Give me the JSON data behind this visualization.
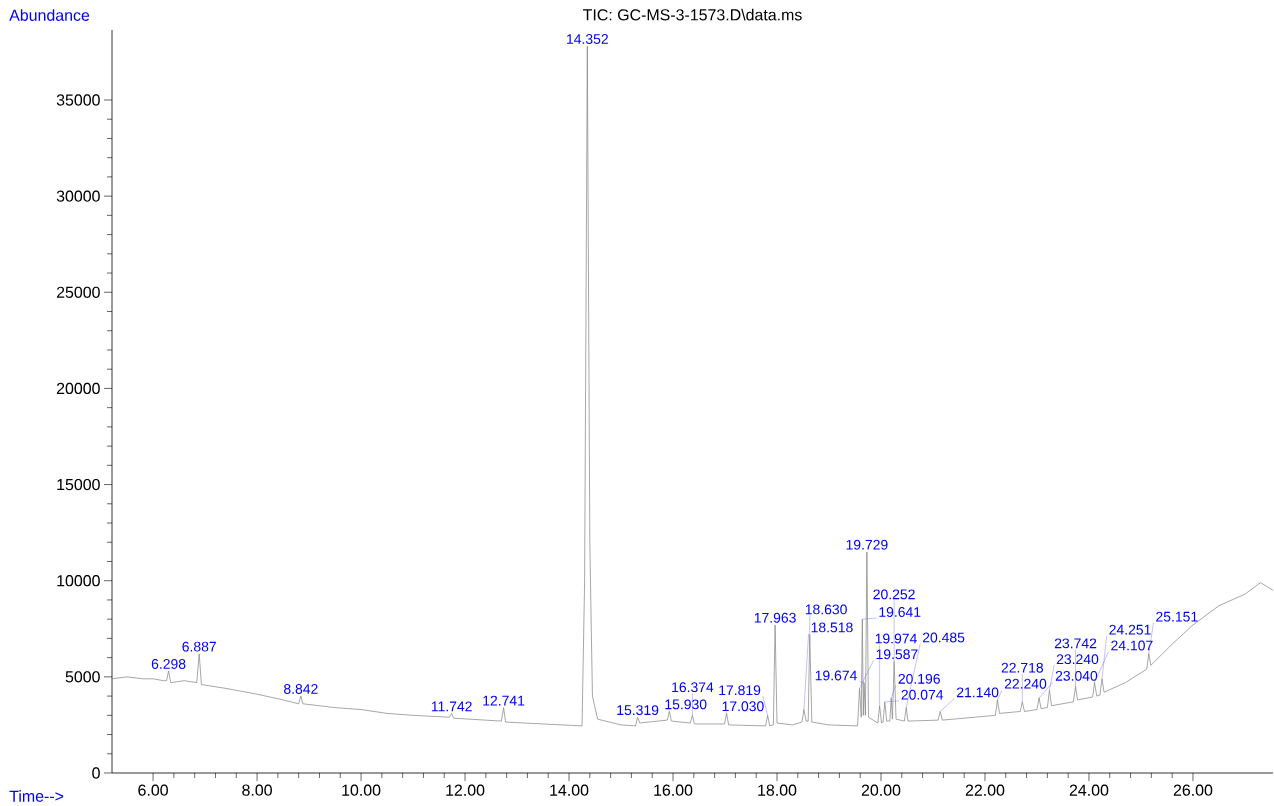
{
  "chart_data": {
    "type": "line",
    "title": "TIC: GC-MS-3-1573.D\\data.ms",
    "xlabel": "Time-->",
    "ylabel": "Abundance",
    "xlim": [
      5.21,
      27.54
    ],
    "ylim": [
      0,
      38640
    ],
    "xticks": [
      {
        "value": 6,
        "label": "6.00"
      },
      {
        "value": 8,
        "label": "8.00"
      },
      {
        "value": 10,
        "label": "10.00"
      },
      {
        "value": 12,
        "label": "12.00"
      },
      {
        "value": 14,
        "label": "14.00"
      },
      {
        "value": 16,
        "label": "16.00"
      },
      {
        "value": 18,
        "label": "18.00"
      },
      {
        "value": 20,
        "label": "20.00"
      },
      {
        "value": 22,
        "label": "22.00"
      },
      {
        "value": 24,
        "label": "24.00"
      },
      {
        "value": 26,
        "label": "26.00"
      }
    ],
    "yticks": [
      0,
      5000,
      10000,
      15000,
      20000,
      25000,
      30000,
      35000
    ],
    "series": [
      {
        "color": "#808080",
        "x": [
          5.21,
          5.5,
          5.8,
          6.0,
          6.2,
          6.26,
          6.298,
          6.34,
          6.6,
          6.84,
          6.887,
          6.93,
          7.4,
          8.0,
          8.5,
          8.8,
          8.842,
          8.88,
          9.5,
          10.0,
          10.5,
          11.0,
          11.7,
          11.742,
          11.78,
          12.7,
          12.741,
          12.78,
          13.5,
          14.25,
          14.3,
          14.352,
          14.4,
          14.45,
          14.55,
          15.0,
          15.28,
          15.319,
          15.36,
          15.89,
          15.93,
          15.97,
          16.33,
          16.374,
          16.41,
          16.99,
          17.03,
          17.07,
          17.78,
          17.819,
          17.86,
          17.93,
          17.963,
          18.0,
          18.3,
          18.48,
          18.518,
          18.56,
          18.6,
          18.63,
          18.67,
          19.0,
          19.55,
          19.587,
          19.62,
          19.641,
          19.66,
          19.674,
          19.7,
          19.729,
          19.76,
          19.94,
          19.974,
          20.01,
          20.04,
          20.074,
          20.11,
          20.17,
          20.196,
          20.22,
          20.252,
          20.29,
          20.45,
          20.485,
          20.52,
          21.1,
          21.14,
          21.18,
          21.8,
          22.2,
          22.24,
          22.28,
          22.68,
          22.718,
          22.76,
          23.0,
          23.04,
          23.08,
          23.2,
          23.24,
          23.28,
          23.7,
          23.742,
          23.78,
          24.07,
          24.107,
          24.15,
          24.21,
          24.251,
          24.29,
          24.7,
          25.11,
          25.151,
          25.19,
          25.6,
          26.0,
          26.5,
          27.0,
          27.3,
          27.54
        ],
        "values": [
          4900,
          5000,
          4900,
          4900,
          4800,
          4800,
          5300,
          4700,
          4800,
          4700,
          6200,
          4600,
          4400,
          4100,
          3800,
          3600,
          4000,
          3600,
          3400,
          3300,
          3100,
          3000,
          2900,
          3100,
          2850,
          2700,
          3400,
          2650,
          2550,
          2450,
          10000,
          37800,
          12000,
          4000,
          2800,
          2500,
          2450,
          2900,
          2600,
          2750,
          3200,
          2700,
          2600,
          3000,
          2550,
          2550,
          3100,
          2500,
          2450,
          3000,
          2450,
          2500,
          7700,
          2600,
          2500,
          2650,
          3300,
          2700,
          2700,
          7200,
          2650,
          2500,
          2450,
          4400,
          2900,
          8000,
          3000,
          4700,
          3000,
          11500,
          2900,
          2600,
          3500,
          2600,
          2650,
          3700,
          2700,
          2700,
          3900,
          2800,
          5800,
          2800,
          2700,
          3400,
          2700,
          2750,
          3200,
          2750,
          2900,
          3000,
          3800,
          3100,
          3200,
          3700,
          3200,
          3300,
          3900,
          3350,
          3400,
          4300,
          3500,
          3700,
          4500,
          3800,
          3950,
          4700,
          4000,
          4050,
          4900,
          4200,
          4700,
          5400,
          6200,
          5600,
          6700,
          7700,
          8700,
          9300,
          9900,
          9500
        ]
      }
    ],
    "annotations": [
      {
        "text": "6.298",
        "x": 6.298,
        "y": 5300
      },
      {
        "text": "6.887",
        "x": 6.887,
        "y": 6200
      },
      {
        "text": "8.842",
        "x": 8.842,
        "y": 4000
      },
      {
        "text": "11.742",
        "x": 11.742,
        "y": 3100
      },
      {
        "text": "12.741",
        "x": 12.741,
        "y": 3400
      },
      {
        "text": "14.352",
        "x": 14.352,
        "y": 37800
      },
      {
        "text": "15.319",
        "x": 15.319,
        "y": 2900
      },
      {
        "text": "15.930",
        "x": 15.93,
        "y": 3200
      },
      {
        "text": "16.374",
        "x": 16.374,
        "y": 3000
      },
      {
        "text": "17.030",
        "x": 17.03,
        "y": 3100
      },
      {
        "text": "17.819",
        "x": 17.819,
        "y": 3000
      },
      {
        "text": "17.963",
        "x": 17.963,
        "y": 7700
      },
      {
        "text": "18.518",
        "x": 18.518,
        "y": 3300
      },
      {
        "text": "18.630",
        "x": 18.63,
        "y": 7200
      },
      {
        "text": "19.587",
        "x": 19.587,
        "y": 4400
      },
      {
        "text": "19.641",
        "x": 19.641,
        "y": 8000
      },
      {
        "text": "19.674",
        "x": 19.674,
        "y": 4700
      },
      {
        "text": "19.729",
        "x": 19.729,
        "y": 11500
      },
      {
        "text": "19.974",
        "x": 19.974,
        "y": 3500
      },
      {
        "text": "20.074",
        "x": 20.074,
        "y": 3700
      },
      {
        "text": "20.196",
        "x": 20.196,
        "y": 3900
      },
      {
        "text": "20.252",
        "x": 20.252,
        "y": 5800
      },
      {
        "text": "20.485",
        "x": 20.485,
        "y": 3400
      },
      {
        "text": "21.140",
        "x": 21.14,
        "y": 3200
      },
      {
        "text": "22.240",
        "x": 22.24,
        "y": 3800
      },
      {
        "text": "22.718",
        "x": 22.718,
        "y": 3700
      },
      {
        "text": "23.040",
        "x": 23.04,
        "y": 3900
      },
      {
        "text": "23.240",
        "x": 23.24,
        "y": 4300
      },
      {
        "text": "23.742",
        "x": 23.742,
        "y": 4500
      },
      {
        "text": "24.107",
        "x": 24.107,
        "y": 4700
      },
      {
        "text": "24.251",
        "x": 24.251,
        "y": 4900
      },
      {
        "text": "25.151",
        "x": 25.151,
        "y": 6200
      }
    ]
  }
}
